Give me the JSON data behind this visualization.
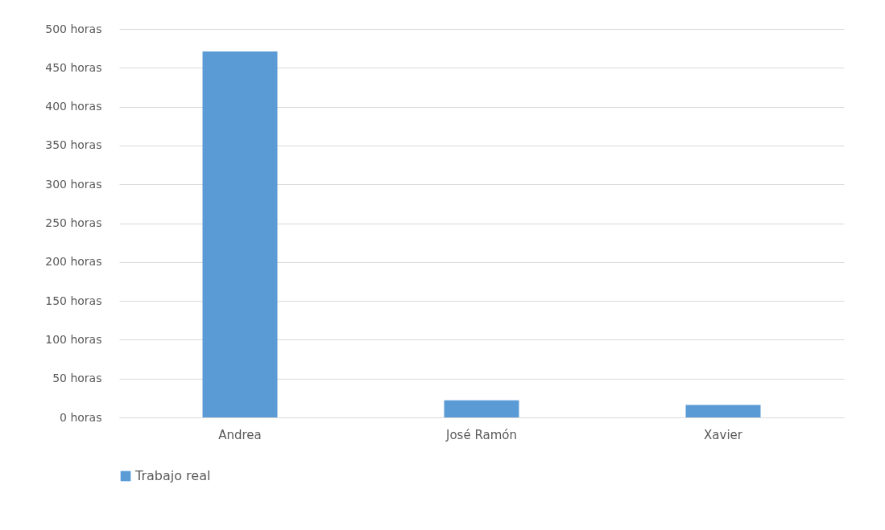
{
  "chart_data": {
    "type": "bar",
    "categories": [
      "Andrea",
      "José Ramón",
      "Xavier"
    ],
    "series": [
      {
        "name": "Trabajo real",
        "color": "#5b9bd5",
        "values": [
          471,
          22,
          16
        ]
      }
    ],
    "ylim": [
      0,
      500
    ],
    "yticks": [
      {
        "value": 0,
        "label": "0 horas"
      },
      {
        "value": 50,
        "label": "50 horas"
      },
      {
        "value": 100,
        "label": "100 horas"
      },
      {
        "value": 150,
        "label": "150 horas"
      },
      {
        "value": 200,
        "label": "200 horas"
      },
      {
        "value": 250,
        "label": "250 horas"
      },
      {
        "value": 300,
        "label": "300 horas"
      },
      {
        "value": 350,
        "label": "350 horas"
      },
      {
        "value": 400,
        "label": "400 horas"
      },
      {
        "value": 450,
        "label": "450 horas"
      },
      {
        "value": 500,
        "label": "500 horas"
      }
    ],
    "grid": "y",
    "legend": "bottom"
  }
}
